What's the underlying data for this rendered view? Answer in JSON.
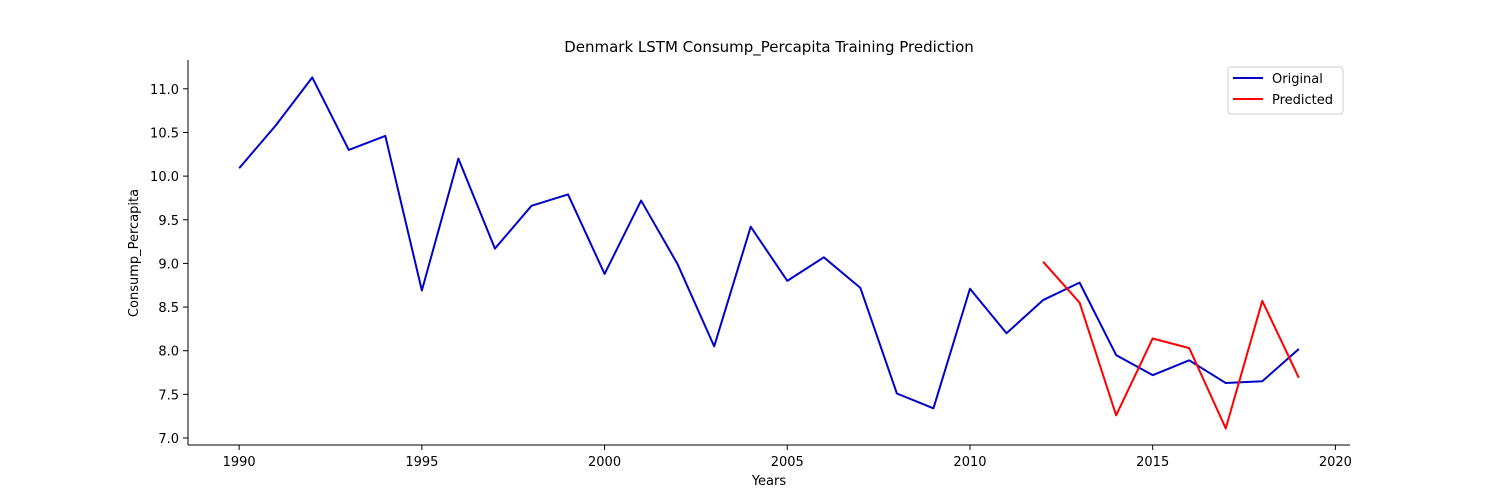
{
  "chart_data": {
    "type": "line",
    "title": "Denmark LSTM Consump_Percapita Training Prediction",
    "xlabel": "Years",
    "ylabel": "Consump_Percapita",
    "xlim": [
      1988.6,
      2020.4
    ],
    "ylim": [
      6.92,
      11.33
    ],
    "x_ticks": [
      1990,
      1995,
      2000,
      2005,
      2010,
      2015,
      2020
    ],
    "y_ticks": [
      7.0,
      7.5,
      8.0,
      8.5,
      9.0,
      9.5,
      10.0,
      10.5,
      11.0
    ],
    "grid": false,
    "legend_position": "top-right",
    "series": [
      {
        "name": "Original",
        "color": "#0000cc",
        "x": [
          1990,
          1991,
          1992,
          1993,
          1994,
          1995,
          1996,
          1997,
          1998,
          1999,
          2000,
          2001,
          2002,
          2003,
          2004,
          2005,
          2006,
          2007,
          2008,
          2009,
          2010,
          2011,
          2012,
          2013,
          2014,
          2015,
          2016,
          2017,
          2018,
          2019
        ],
        "values": [
          10.09,
          10.58,
          11.13,
          10.3,
          10.46,
          8.69,
          10.2,
          9.17,
          9.66,
          9.79,
          8.88,
          9.72,
          8.99,
          8.05,
          9.42,
          8.8,
          9.07,
          8.72,
          7.51,
          7.34,
          8.71,
          8.2,
          8.58,
          8.78,
          7.95,
          7.72,
          7.89,
          7.63,
          7.65,
          8.02
        ]
      },
      {
        "name": "Predicted",
        "color": "#ff0000",
        "x": [
          2012,
          2013,
          2014,
          2015,
          2016,
          2017,
          2018,
          2019
        ],
        "values": [
          9.02,
          8.55,
          7.26,
          8.14,
          8.03,
          7.11,
          8.57,
          7.69
        ]
      }
    ]
  }
}
